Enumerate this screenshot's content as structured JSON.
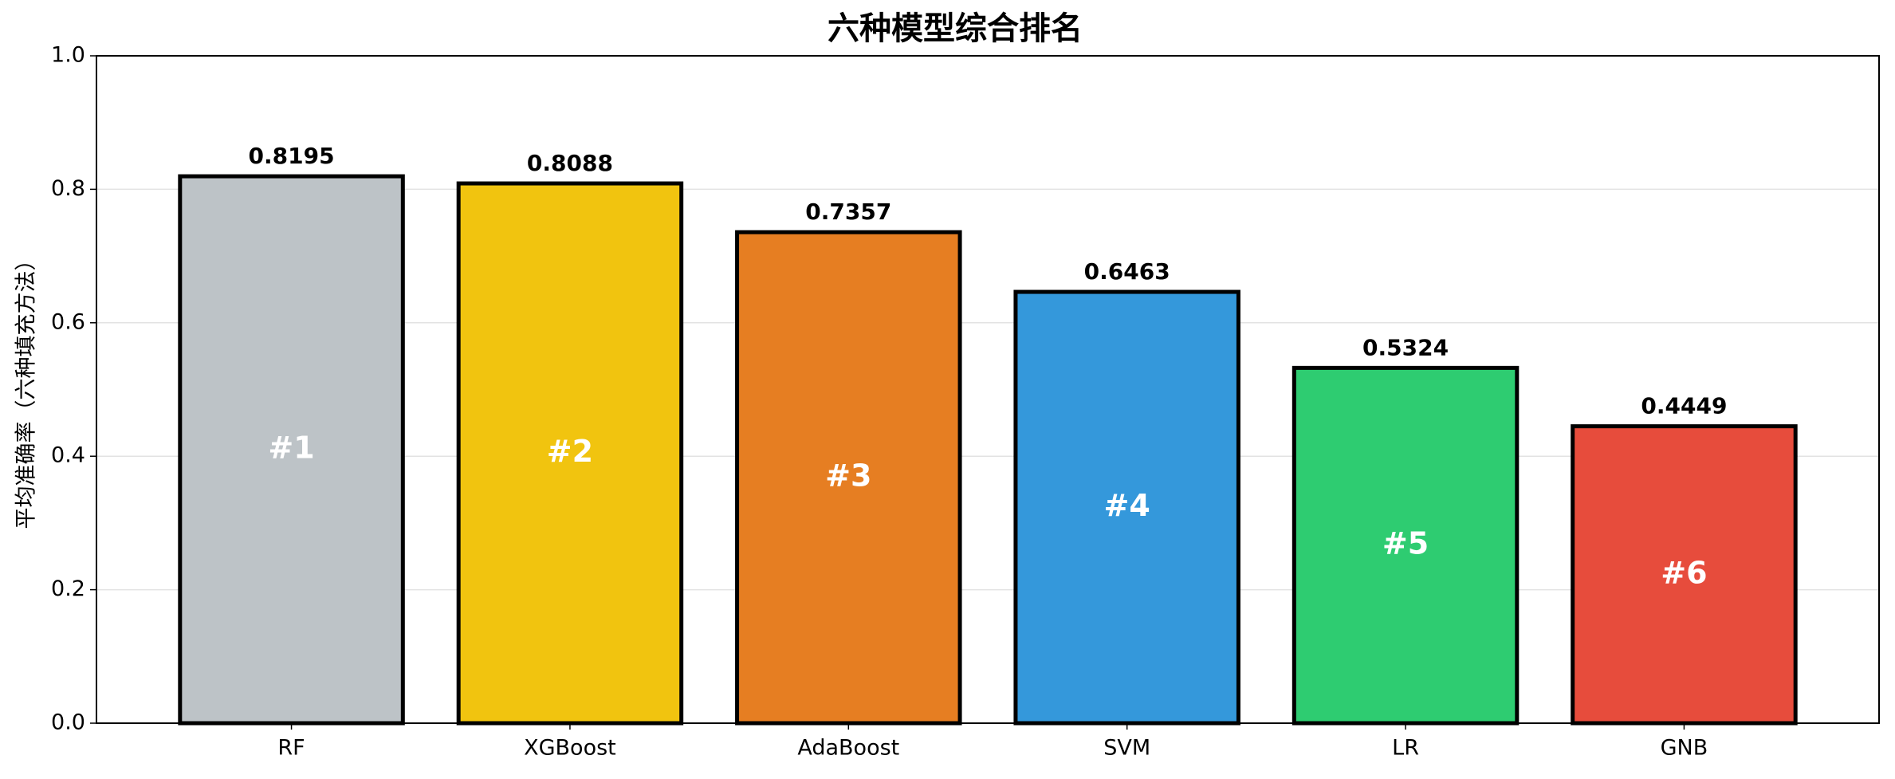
{
  "chart_data": {
    "type": "bar",
    "title": "六种模型综合排名",
    "y_label": "平均准确率（六种填充方法）",
    "categories": [
      "RF",
      "XGBoost",
      "AdaBoost",
      "SVM",
      "LR",
      "GNB"
    ],
    "values": [
      0.8195,
      0.8088,
      0.7357,
      0.6463,
      0.5324,
      0.4449
    ],
    "colors": [
      "#bdc3c7",
      "#f1c40f",
      "#e67e22",
      "#3498db",
      "#2ecc71",
      "#e74c3c"
    ],
    "rank_labels": [
      "#1",
      "#2",
      "#3",
      "#4",
      "#5",
      "#6"
    ],
    "ylim": [
      0,
      1
    ],
    "yticks": [
      {
        "value": 0,
        "label": "0.0"
      },
      0.2,
      0.4,
      0.6,
      0.8,
      {
        "value": 1,
        "label": "1.0"
      }
    ],
    "grid": true
  }
}
